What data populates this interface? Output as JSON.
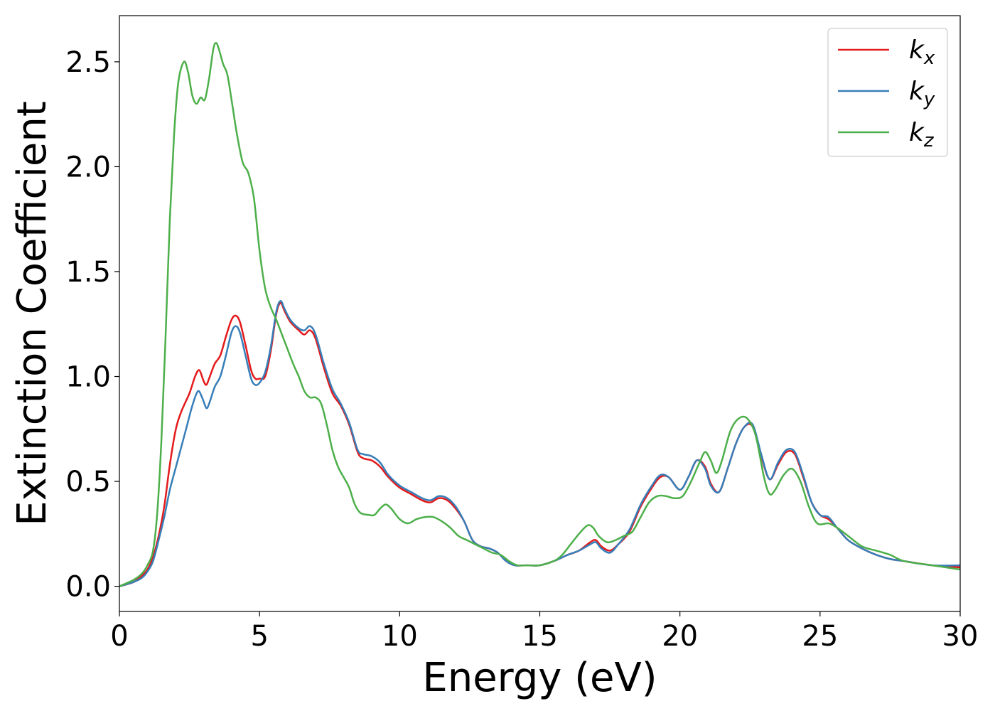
{
  "chart_data": {
    "type": "line",
    "title": "",
    "xlabel": "Energy (eV)",
    "ylabel": "Extinction Coefficient",
    "xlim": [
      0,
      30
    ],
    "ylim": [
      -0.12,
      2.72
    ],
    "xticks": [
      0,
      5,
      10,
      15,
      20,
      25,
      30
    ],
    "xtick_labels": [
      "0",
      "5",
      "10",
      "15",
      "20",
      "25",
      "30"
    ],
    "yticks": [
      0.0,
      0.5,
      1.0,
      1.5,
      2.0,
      2.5
    ],
    "ytick_labels": [
      "0.0",
      "0.5",
      "1.0",
      "1.5",
      "2.0",
      "2.5"
    ],
    "grid": false,
    "legend_position": "top-right",
    "series": [
      {
        "name": "k",
        "subscript": "x",
        "color": "#e41a1c",
        "points": [
          [
            0,
            0
          ],
          [
            0.5,
            0.02
          ],
          [
            0.8,
            0.05
          ],
          [
            1.0,
            0.08
          ],
          [
            1.2,
            0.14
          ],
          [
            1.4,
            0.24
          ],
          [
            1.6,
            0.38
          ],
          [
            1.8,
            0.58
          ],
          [
            2.0,
            0.74
          ],
          [
            2.2,
            0.83
          ],
          [
            2.5,
            0.92
          ],
          [
            2.7,
            1.0
          ],
          [
            2.85,
            1.03
          ],
          [
            3.0,
            0.98
          ],
          [
            3.1,
            0.96
          ],
          [
            3.2,
            0.99
          ],
          [
            3.4,
            1.06
          ],
          [
            3.6,
            1.1
          ],
          [
            3.8,
            1.19
          ],
          [
            4.0,
            1.27
          ],
          [
            4.15,
            1.29
          ],
          [
            4.3,
            1.26
          ],
          [
            4.5,
            1.15
          ],
          [
            4.7,
            1.03
          ],
          [
            4.85,
            0.99
          ],
          [
            5.0,
            0.99
          ],
          [
            5.2,
            1.0
          ],
          [
            5.4,
            1.12
          ],
          [
            5.6,
            1.3
          ],
          [
            5.75,
            1.35
          ],
          [
            5.9,
            1.31
          ],
          [
            6.1,
            1.26
          ],
          [
            6.4,
            1.22
          ],
          [
            6.6,
            1.2
          ],
          [
            6.8,
            1.22
          ],
          [
            7.0,
            1.18
          ],
          [
            7.3,
            1.04
          ],
          [
            7.6,
            0.92
          ],
          [
            7.9,
            0.86
          ],
          [
            8.2,
            0.77
          ],
          [
            8.5,
            0.64
          ],
          [
            8.7,
            0.61
          ],
          [
            9.0,
            0.6
          ],
          [
            9.3,
            0.57
          ],
          [
            9.6,
            0.52
          ],
          [
            10.0,
            0.47
          ],
          [
            10.4,
            0.44
          ],
          [
            10.8,
            0.41
          ],
          [
            11.1,
            0.4
          ],
          [
            11.4,
            0.42
          ],
          [
            11.7,
            0.41
          ],
          [
            12.0,
            0.37
          ],
          [
            12.3,
            0.31
          ],
          [
            12.6,
            0.22
          ],
          [
            12.9,
            0.19
          ],
          [
            13.2,
            0.18
          ],
          [
            13.5,
            0.16
          ],
          [
            13.8,
            0.12
          ],
          [
            14.1,
            0.1
          ],
          [
            14.5,
            0.1
          ],
          [
            15.0,
            0.1
          ],
          [
            15.5,
            0.12
          ],
          [
            16.0,
            0.15
          ],
          [
            16.4,
            0.17
          ],
          [
            16.8,
            0.21
          ],
          [
            17.0,
            0.22
          ],
          [
            17.2,
            0.19
          ],
          [
            17.5,
            0.17
          ],
          [
            17.8,
            0.2
          ],
          [
            18.2,
            0.26
          ],
          [
            18.6,
            0.38
          ],
          [
            19.0,
            0.47
          ],
          [
            19.3,
            0.52
          ],
          [
            19.6,
            0.52
          ],
          [
            20.0,
            0.46
          ],
          [
            20.3,
            0.52
          ],
          [
            20.6,
            0.6
          ],
          [
            20.9,
            0.57
          ],
          [
            21.1,
            0.49
          ],
          [
            21.4,
            0.45
          ],
          [
            21.7,
            0.56
          ],
          [
            22.0,
            0.68
          ],
          [
            22.3,
            0.76
          ],
          [
            22.6,
            0.76
          ],
          [
            22.9,
            0.62
          ],
          [
            23.2,
            0.51
          ],
          [
            23.5,
            0.58
          ],
          [
            23.8,
            0.64
          ],
          [
            24.1,
            0.63
          ],
          [
            24.4,
            0.52
          ],
          [
            24.7,
            0.4
          ],
          [
            25.0,
            0.34
          ],
          [
            25.3,
            0.32
          ],
          [
            25.6,
            0.28
          ],
          [
            26.0,
            0.22
          ],
          [
            26.5,
            0.18
          ],
          [
            27.0,
            0.15
          ],
          [
            27.5,
            0.13
          ],
          [
            28.0,
            0.12
          ],
          [
            29.0,
            0.1
          ],
          [
            30.0,
            0.09
          ]
        ]
      },
      {
        "name": "k",
        "subscript": "y",
        "color": "#377eb8",
        "points": [
          [
            0,
            0
          ],
          [
            0.5,
            0.02
          ],
          [
            0.8,
            0.04
          ],
          [
            1.0,
            0.07
          ],
          [
            1.2,
            0.12
          ],
          [
            1.4,
            0.22
          ],
          [
            1.6,
            0.33
          ],
          [
            1.8,
            0.46
          ],
          [
            2.0,
            0.56
          ],
          [
            2.2,
            0.66
          ],
          [
            2.4,
            0.76
          ],
          [
            2.6,
            0.86
          ],
          [
            2.8,
            0.93
          ],
          [
            2.95,
            0.9
          ],
          [
            3.1,
            0.85
          ],
          [
            3.2,
            0.87
          ],
          [
            3.4,
            0.95
          ],
          [
            3.6,
            1.0
          ],
          [
            3.8,
            1.1
          ],
          [
            4.0,
            1.21
          ],
          [
            4.15,
            1.24
          ],
          [
            4.3,
            1.21
          ],
          [
            4.5,
            1.1
          ],
          [
            4.7,
            0.99
          ],
          [
            4.85,
            0.96
          ],
          [
            5.0,
            0.97
          ],
          [
            5.2,
            1.02
          ],
          [
            5.4,
            1.14
          ],
          [
            5.6,
            1.31
          ],
          [
            5.75,
            1.36
          ],
          [
            5.9,
            1.32
          ],
          [
            6.1,
            1.27
          ],
          [
            6.4,
            1.23
          ],
          [
            6.6,
            1.22
          ],
          [
            6.8,
            1.24
          ],
          [
            7.0,
            1.2
          ],
          [
            7.3,
            1.06
          ],
          [
            7.6,
            0.94
          ],
          [
            7.9,
            0.87
          ],
          [
            8.2,
            0.78
          ],
          [
            8.5,
            0.65
          ],
          [
            8.7,
            0.63
          ],
          [
            9.0,
            0.62
          ],
          [
            9.3,
            0.59
          ],
          [
            9.6,
            0.53
          ],
          [
            10.0,
            0.48
          ],
          [
            10.4,
            0.45
          ],
          [
            10.8,
            0.42
          ],
          [
            11.1,
            0.41
          ],
          [
            11.4,
            0.43
          ],
          [
            11.7,
            0.42
          ],
          [
            12.0,
            0.38
          ],
          [
            12.3,
            0.31
          ],
          [
            12.6,
            0.22
          ],
          [
            12.9,
            0.19
          ],
          [
            13.2,
            0.18
          ],
          [
            13.5,
            0.16
          ],
          [
            13.8,
            0.12
          ],
          [
            14.1,
            0.1
          ],
          [
            14.5,
            0.1
          ],
          [
            15.0,
            0.1
          ],
          [
            15.5,
            0.12
          ],
          [
            16.0,
            0.15
          ],
          [
            16.4,
            0.17
          ],
          [
            16.8,
            0.2
          ],
          [
            17.0,
            0.21
          ],
          [
            17.2,
            0.18
          ],
          [
            17.5,
            0.16
          ],
          [
            17.8,
            0.2
          ],
          [
            18.2,
            0.27
          ],
          [
            18.6,
            0.39
          ],
          [
            19.0,
            0.48
          ],
          [
            19.3,
            0.53
          ],
          [
            19.6,
            0.52
          ],
          [
            20.0,
            0.46
          ],
          [
            20.3,
            0.52
          ],
          [
            20.6,
            0.6
          ],
          [
            20.9,
            0.56
          ],
          [
            21.1,
            0.48
          ],
          [
            21.4,
            0.45
          ],
          [
            21.7,
            0.56
          ],
          [
            22.0,
            0.68
          ],
          [
            22.3,
            0.76
          ],
          [
            22.6,
            0.77
          ],
          [
            22.9,
            0.63
          ],
          [
            23.2,
            0.51
          ],
          [
            23.5,
            0.59
          ],
          [
            23.8,
            0.65
          ],
          [
            24.1,
            0.64
          ],
          [
            24.4,
            0.53
          ],
          [
            24.7,
            0.4
          ],
          [
            25.0,
            0.34
          ],
          [
            25.3,
            0.33
          ],
          [
            25.6,
            0.28
          ],
          [
            26.0,
            0.22
          ],
          [
            26.5,
            0.18
          ],
          [
            27.0,
            0.15
          ],
          [
            27.5,
            0.13
          ],
          [
            28.0,
            0.12
          ],
          [
            29.0,
            0.1
          ],
          [
            30.0,
            0.1
          ]
        ]
      },
      {
        "name": "k",
        "subscript": "z",
        "color": "#4daf4a",
        "points": [
          [
            0,
            0
          ],
          [
            0.5,
            0.03
          ],
          [
            0.8,
            0.06
          ],
          [
            1.0,
            0.1
          ],
          [
            1.2,
            0.17
          ],
          [
            1.35,
            0.35
          ],
          [
            1.5,
            0.7
          ],
          [
            1.65,
            1.2
          ],
          [
            1.8,
            1.75
          ],
          [
            1.95,
            2.15
          ],
          [
            2.1,
            2.4
          ],
          [
            2.3,
            2.5
          ],
          [
            2.45,
            2.45
          ],
          [
            2.6,
            2.34
          ],
          [
            2.75,
            2.3
          ],
          [
            2.9,
            2.33
          ],
          [
            3.05,
            2.32
          ],
          [
            3.2,
            2.42
          ],
          [
            3.35,
            2.56
          ],
          [
            3.45,
            2.59
          ],
          [
            3.55,
            2.56
          ],
          [
            3.7,
            2.49
          ],
          [
            3.85,
            2.44
          ],
          [
            4.0,
            2.32
          ],
          [
            4.2,
            2.15
          ],
          [
            4.4,
            2.02
          ],
          [
            4.6,
            1.97
          ],
          [
            4.8,
            1.85
          ],
          [
            5.0,
            1.6
          ],
          [
            5.2,
            1.42
          ],
          [
            5.4,
            1.33
          ],
          [
            5.6,
            1.27
          ],
          [
            5.8,
            1.2
          ],
          [
            6.0,
            1.13
          ],
          [
            6.2,
            1.06
          ],
          [
            6.4,
            1.0
          ],
          [
            6.6,
            0.93
          ],
          [
            6.8,
            0.9
          ],
          [
            7.0,
            0.9
          ],
          [
            7.2,
            0.87
          ],
          [
            7.4,
            0.77
          ],
          [
            7.6,
            0.65
          ],
          [
            7.8,
            0.57
          ],
          [
            8.0,
            0.52
          ],
          [
            8.2,
            0.47
          ],
          [
            8.4,
            0.39
          ],
          [
            8.6,
            0.35
          ],
          [
            8.9,
            0.34
          ],
          [
            9.1,
            0.34
          ],
          [
            9.3,
            0.37
          ],
          [
            9.5,
            0.39
          ],
          [
            9.7,
            0.37
          ],
          [
            10.0,
            0.32
          ],
          [
            10.3,
            0.3
          ],
          [
            10.6,
            0.32
          ],
          [
            10.9,
            0.33
          ],
          [
            11.2,
            0.33
          ],
          [
            11.5,
            0.31
          ],
          [
            11.8,
            0.28
          ],
          [
            12.1,
            0.24
          ],
          [
            12.4,
            0.22
          ],
          [
            12.7,
            0.2
          ],
          [
            13.0,
            0.18
          ],
          [
            13.3,
            0.16
          ],
          [
            13.6,
            0.15
          ],
          [
            13.9,
            0.12
          ],
          [
            14.2,
            0.1
          ],
          [
            14.6,
            0.1
          ],
          [
            15.0,
            0.1
          ],
          [
            15.5,
            0.12
          ],
          [
            15.8,
            0.15
          ],
          [
            16.1,
            0.2
          ],
          [
            16.4,
            0.25
          ],
          [
            16.7,
            0.29
          ],
          [
            16.9,
            0.28
          ],
          [
            17.1,
            0.24
          ],
          [
            17.4,
            0.21
          ],
          [
            17.7,
            0.22
          ],
          [
            18.0,
            0.24
          ],
          [
            18.3,
            0.26
          ],
          [
            18.6,
            0.33
          ],
          [
            18.9,
            0.4
          ],
          [
            19.2,
            0.43
          ],
          [
            19.5,
            0.43
          ],
          [
            19.8,
            0.42
          ],
          [
            20.1,
            0.43
          ],
          [
            20.4,
            0.5
          ],
          [
            20.7,
            0.59
          ],
          [
            20.9,
            0.64
          ],
          [
            21.1,
            0.6
          ],
          [
            21.3,
            0.54
          ],
          [
            21.5,
            0.6
          ],
          [
            21.8,
            0.74
          ],
          [
            22.1,
            0.8
          ],
          [
            22.4,
            0.8
          ],
          [
            22.7,
            0.72
          ],
          [
            23.0,
            0.52
          ],
          [
            23.2,
            0.44
          ],
          [
            23.4,
            0.46
          ],
          [
            23.7,
            0.53
          ],
          [
            24.0,
            0.56
          ],
          [
            24.3,
            0.5
          ],
          [
            24.6,
            0.38
          ],
          [
            24.9,
            0.3
          ],
          [
            25.3,
            0.3
          ],
          [
            25.6,
            0.28
          ],
          [
            26.0,
            0.24
          ],
          [
            26.5,
            0.19
          ],
          [
            27.0,
            0.17
          ],
          [
            27.5,
            0.15
          ],
          [
            28.0,
            0.12
          ],
          [
            29.0,
            0.1
          ],
          [
            30.0,
            0.08
          ]
        ]
      }
    ]
  }
}
